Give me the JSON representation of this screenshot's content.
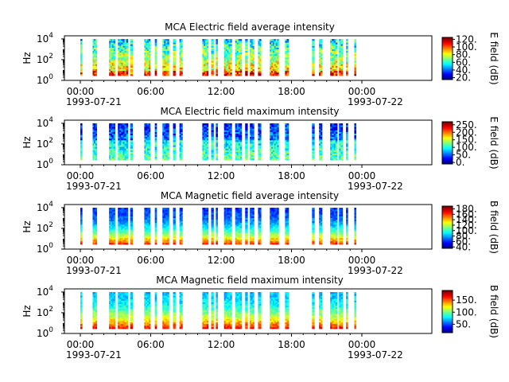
{
  "chart_data": [
    {
      "type": "heatmap",
      "title": "MCA  Electric field average intensity",
      "ylabel": "Hz",
      "yscale": "log",
      "yticks": [
        "10",
        "10",
        "10"
      ],
      "yticks_exp": [
        "0",
        "2",
        "4"
      ],
      "ylim": [
        1,
        20000
      ],
      "xlabel": "",
      "xticks": [
        "00:00",
        "06:00",
        "12:00",
        "18:00",
        "00:00"
      ],
      "xdates": [
        "1993-07-21",
        "1993-07-22"
      ],
      "colorbar": {
        "label": "E field (dB)",
        "ticks": [
          "20.",
          "40.",
          "60.",
          "80.",
          "100.",
          "120."
        ],
        "range": [
          15,
          125
        ]
      }
    },
    {
      "type": "heatmap",
      "title": "MCA  Electric field maximum intensity",
      "ylabel": "Hz",
      "yscale": "log",
      "yticks": [
        "10",
        "10",
        "10"
      ],
      "yticks_exp": [
        "0",
        "2",
        "4"
      ],
      "ylim": [
        1,
        20000
      ],
      "xlabel": "",
      "xticks": [
        "00:00",
        "06:00",
        "12:00",
        "18:00",
        "00:00"
      ],
      "xdates": [
        "1993-07-21",
        "1993-07-22"
      ],
      "colorbar": {
        "label": "E field (dB)",
        "ticks": [
          "0.",
          "50.",
          "100.",
          "150.",
          "200.",
          "250."
        ],
        "range": [
          -10,
          270
        ]
      }
    },
    {
      "type": "heatmap",
      "title": "MCA  Magnetic field average intensity",
      "ylabel": "Hz",
      "yscale": "log",
      "yticks": [
        "10",
        "10",
        "10"
      ],
      "yticks_exp": [
        "0",
        "2",
        "4"
      ],
      "ylim": [
        1,
        20000
      ],
      "xlabel": "",
      "xticks": [
        "00:00",
        "06:00",
        "12:00",
        "18:00",
        "00:00"
      ],
      "xdates": [
        "1993-07-21",
        "1993-07-22"
      ],
      "colorbar": {
        "label": "B field (dB)",
        "ticks": [
          "40.",
          "60.",
          "80.",
          "100.",
          "120.",
          "140.",
          "160.",
          "180."
        ],
        "range": [
          35,
          190
        ]
      }
    },
    {
      "type": "heatmap",
      "title": "MCA  Magnetic field maximum intensity",
      "ylabel": "Hz",
      "yscale": "log",
      "yticks": [
        "10",
        "10",
        "10"
      ],
      "yticks_exp": [
        "0",
        "2",
        "4"
      ],
      "ylim": [
        1,
        20000
      ],
      "xlabel": "",
      "xticks": [
        "00:00",
        "06:00",
        "12:00",
        "18:00",
        "00:00"
      ],
      "xdates": [
        "1993-07-21",
        "1993-07-22"
      ],
      "colorbar": {
        "label": "B field (dB)",
        "ticks": [
          "50.",
          "100.",
          "150."
        ],
        "range": [
          15,
          190
        ]
      }
    }
  ],
  "data_segments_hours": [
    [
      0.0,
      0.15
    ],
    [
      1.05,
      1.4
    ],
    [
      2.45,
      2.95
    ],
    [
      3.2,
      4.05
    ],
    [
      4.25,
      4.45
    ],
    [
      5.45,
      5.95
    ],
    [
      6.35,
      6.5
    ],
    [
      7.0,
      7.55
    ],
    [
      7.9,
      8.1
    ],
    [
      8.45,
      8.7
    ],
    [
      10.4,
      10.9
    ],
    [
      11.15,
      11.35
    ],
    [
      11.55,
      11.7
    ],
    [
      12.25,
      12.9
    ],
    [
      13.2,
      13.75
    ],
    [
      14.05,
      14.25
    ],
    [
      14.45,
      14.8
    ],
    [
      15.15,
      15.4
    ],
    [
      16.15,
      16.9
    ],
    [
      17.45,
      17.75
    ],
    [
      19.75,
      19.95
    ],
    [
      20.35,
      20.6
    ],
    [
      21.3,
      21.9
    ],
    [
      22.05,
      22.35
    ],
    [
      22.65,
      22.8
    ],
    [
      23.35,
      23.5
    ]
  ]
}
